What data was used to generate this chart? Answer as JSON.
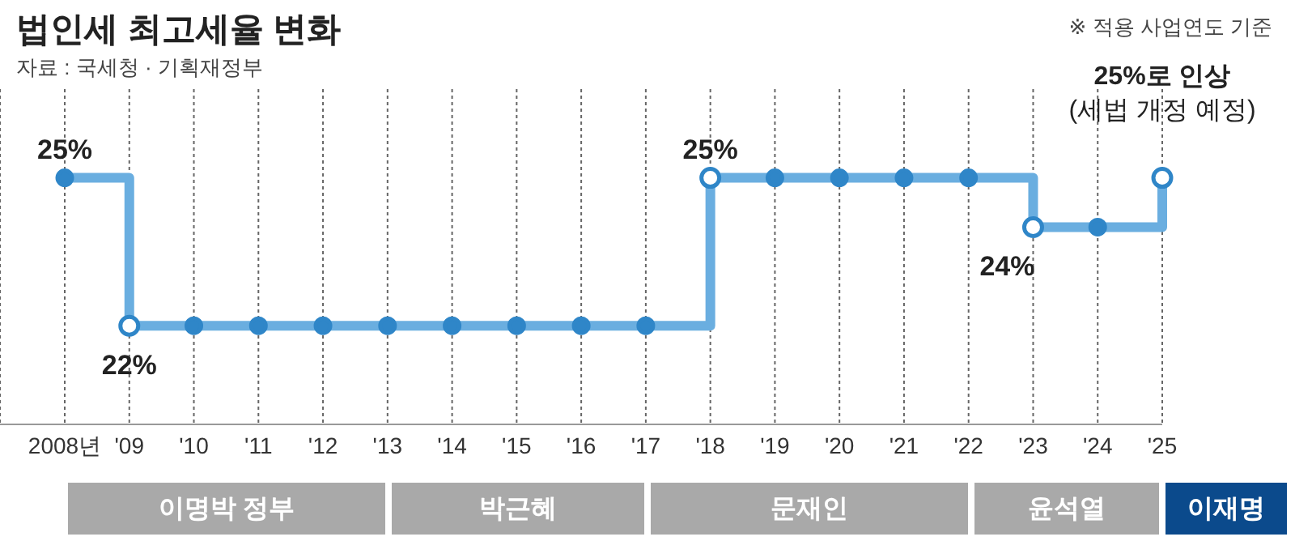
{
  "chart_data": {
    "type": "step",
    "title": "법인세 최고세율 변화",
    "subtitle": "자료 : 국세청 · 기획재정부",
    "annotations": [
      "※ 적용 사업연도 기준",
      {
        "text": "25%로 인상 (세법 개정 예정)",
        "x": "'25",
        "y": 25
      },
      "이명박 정부",
      "박근혜",
      "문재인",
      "윤석열",
      "이재명"
    ],
    "categories": [
      "2008년",
      "'09",
      "'10",
      "'11",
      "'12",
      "'13",
      "'14",
      "'15",
      "'16",
      "'17",
      "'18",
      "'19",
      "'20",
      "'21",
      "'22",
      "'23",
      "'24",
      "'25"
    ],
    "series": [
      {
        "color": "#6aaee0",
        "values": [
          25,
          22,
          22,
          22,
          22,
          22,
          22,
          22,
          22,
          22,
          25,
          25,
          25,
          25,
          25,
          24,
          24,
          25
        ],
        "value_labels": [
          "25%",
          "22%",
          null,
          null,
          null,
          null,
          null,
          null,
          null,
          null,
          "25%",
          null,
          null,
          null,
          null,
          "24%",
          null,
          null
        ]
      }
    ],
    "grid": "x",
    "marker": "circle",
    "line_style": "solid"
  }
}
